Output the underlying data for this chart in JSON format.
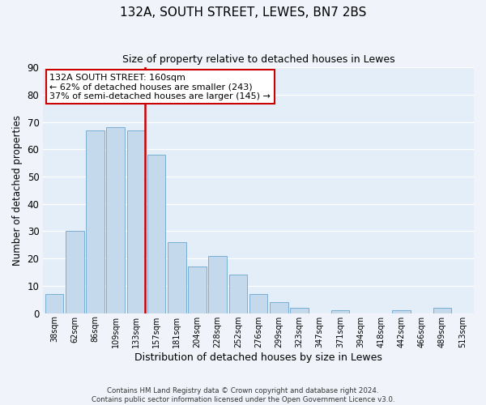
{
  "title": "132A, SOUTH STREET, LEWES, BN7 2BS",
  "subtitle": "Size of property relative to detached houses in Lewes",
  "xlabel": "Distribution of detached houses by size in Lewes",
  "ylabel": "Number of detached properties",
  "bar_labels": [
    "38sqm",
    "62sqm",
    "86sqm",
    "109sqm",
    "133sqm",
    "157sqm",
    "181sqm",
    "204sqm",
    "228sqm",
    "252sqm",
    "276sqm",
    "299sqm",
    "323sqm",
    "347sqm",
    "371sqm",
    "394sqm",
    "418sqm",
    "442sqm",
    "466sqm",
    "489sqm",
    "513sqm"
  ],
  "bar_heights": [
    7,
    30,
    67,
    68,
    67,
    58,
    26,
    17,
    21,
    14,
    7,
    4,
    2,
    0,
    1,
    0,
    0,
    1,
    0,
    2,
    0
  ],
  "bar_color": "#c5d9ec",
  "bar_edge_color": "#7aaed4",
  "vline_color": "#cc0000",
  "annotation_title": "132A SOUTH STREET: 160sqm",
  "annotation_line1": "← 62% of detached houses are smaller (243)",
  "annotation_line2": "37% of semi-detached houses are larger (145) →",
  "annotation_box_facecolor": "#ffffff",
  "annotation_box_edgecolor": "#cc0000",
  "ylim": [
    0,
    90
  ],
  "yticks": [
    0,
    10,
    20,
    30,
    40,
    50,
    60,
    70,
    80,
    90
  ],
  "footer_line1": "Contains HM Land Registry data © Crown copyright and database right 2024.",
  "footer_line2": "Contains public sector information licensed under the Open Government Licence v3.0.",
  "bg_color": "#f0f4fa",
  "plot_bg_color": "#e4eef8"
}
